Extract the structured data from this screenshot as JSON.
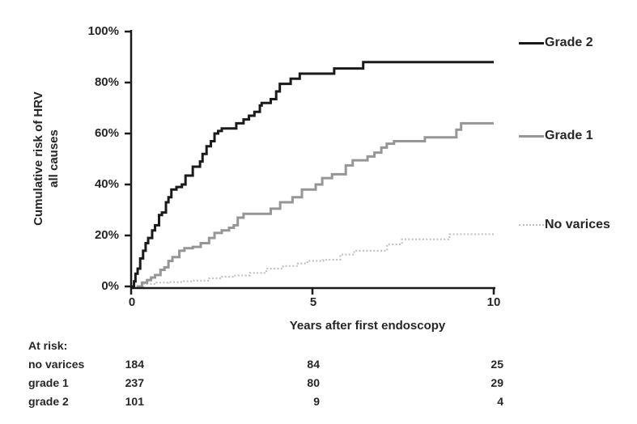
{
  "figure": {
    "background": "#ffffff",
    "text_color": "#262626"
  },
  "chart_data": {
    "type": "line",
    "subtype": "kaplan-meier-step",
    "title": "",
    "xlabel": "Years after first endoscopy",
    "ylabel": "Cumulative risk of HRV all causes",
    "ylabel_lines": [
      "Cumulative risk of HRV",
      "all causes"
    ],
    "xlim": [
      0,
      10
    ],
    "ylim": [
      0,
      100
    ],
    "grid": false,
    "legend_position": "right",
    "x_ticks": [
      {
        "value": 0,
        "label": "0"
      },
      {
        "value": 5,
        "label": "5"
      },
      {
        "value": 10,
        "label": "10"
      }
    ],
    "y_ticks": [
      {
        "value": 100,
        "label": "100%"
      },
      {
        "value": 80,
        "label": "80%"
      },
      {
        "value": 60,
        "label": "60%"
      },
      {
        "value": 40,
        "label": "40%"
      },
      {
        "value": 20,
        "label": "20%"
      },
      {
        "value": 0,
        "label": "0%"
      }
    ],
    "series": [
      {
        "name": "Grade 2",
        "color": "#1a1a1a",
        "style": "solid",
        "width": 3,
        "points": [
          [
            0,
            0
          ],
          [
            0.08,
            2
          ],
          [
            0.12,
            5
          ],
          [
            0.18,
            7
          ],
          [
            0.25,
            11
          ],
          [
            0.33,
            14
          ],
          [
            0.4,
            17
          ],
          [
            0.47,
            19
          ],
          [
            0.58,
            22
          ],
          [
            0.66,
            24
          ],
          [
            0.77,
            28
          ],
          [
            0.85,
            29
          ],
          [
            0.96,
            33
          ],
          [
            1.03,
            35
          ],
          [
            1.11,
            38
          ],
          [
            1.25,
            39
          ],
          [
            1.4,
            40
          ],
          [
            1.5,
            43.5
          ],
          [
            1.7,
            47
          ],
          [
            1.9,
            49
          ],
          [
            1.97,
            52
          ],
          [
            2.08,
            55
          ],
          [
            2.2,
            57
          ],
          [
            2.3,
            60
          ],
          [
            2.4,
            61
          ],
          [
            2.5,
            62
          ],
          [
            2.9,
            64
          ],
          [
            3.1,
            65.5
          ],
          [
            3.25,
            67
          ],
          [
            3.4,
            68.5
          ],
          [
            3.55,
            71
          ],
          [
            3.6,
            72
          ],
          [
            3.85,
            73.5
          ],
          [
            4.0,
            76.5
          ],
          [
            4.1,
            79.5
          ],
          [
            4.4,
            81.5
          ],
          [
            4.65,
            83.5
          ],
          [
            5.6,
            85.5
          ],
          [
            6.4,
            88
          ],
          [
            10,
            88
          ]
        ]
      },
      {
        "name": "Grade 1",
        "color": "#969696",
        "style": "solid",
        "width": 3,
        "points": [
          [
            0.15,
            0
          ],
          [
            0.3,
            1.5
          ],
          [
            0.44,
            2.5
          ],
          [
            0.55,
            3.5
          ],
          [
            0.66,
            4.5
          ],
          [
            0.81,
            6.5
          ],
          [
            0.92,
            7.5
          ],
          [
            1.03,
            10
          ],
          [
            1.14,
            11.5
          ],
          [
            1.33,
            14
          ],
          [
            1.47,
            15
          ],
          [
            1.7,
            15.5
          ],
          [
            1.92,
            17
          ],
          [
            2.15,
            19
          ],
          [
            2.3,
            21
          ],
          [
            2.5,
            22
          ],
          [
            2.7,
            23
          ],
          [
            2.83,
            24
          ],
          [
            2.94,
            27
          ],
          [
            3.1,
            28.5
          ],
          [
            3.85,
            30.5
          ],
          [
            4.11,
            33
          ],
          [
            4.45,
            35
          ],
          [
            4.71,
            38
          ],
          [
            5.09,
            40
          ],
          [
            5.27,
            42.5
          ],
          [
            5.54,
            44
          ],
          [
            5.92,
            47.5
          ],
          [
            6.11,
            49.5
          ],
          [
            6.52,
            51
          ],
          [
            6.71,
            52.5
          ],
          [
            6.9,
            54.5
          ],
          [
            7.05,
            56
          ],
          [
            7.25,
            57
          ],
          [
            8.1,
            58.5
          ],
          [
            8.97,
            61.5
          ],
          [
            9.1,
            64
          ],
          [
            10,
            64
          ]
        ]
      },
      {
        "name": "No varices",
        "color": "#c2c2c2",
        "style": "dotted",
        "width": 2.2,
        "points": [
          [
            0.2,
            0
          ],
          [
            0.34,
            1
          ],
          [
            0.7,
            1.5
          ],
          [
            1.02,
            1.7
          ],
          [
            1.45,
            2
          ],
          [
            1.7,
            2.3
          ],
          [
            2.15,
            3.2
          ],
          [
            2.5,
            3.8
          ],
          [
            2.83,
            4.3
          ],
          [
            3.28,
            5.3
          ],
          [
            3.73,
            7
          ],
          [
            4.19,
            8
          ],
          [
            4.6,
            9
          ],
          [
            4.86,
            10
          ],
          [
            5.3,
            10.5
          ],
          [
            5.77,
            12.5
          ],
          [
            6.15,
            14
          ],
          [
            7.06,
            16.5
          ],
          [
            7.47,
            18.5
          ],
          [
            8.78,
            20.5
          ],
          [
            10,
            20.5
          ]
        ]
      }
    ]
  },
  "at_risk_table": {
    "title": "At risk:",
    "rows": [
      {
        "label": "no varices",
        "counts": [
          "184",
          "84",
          "25"
        ]
      },
      {
        "label": "grade 1",
        "counts": [
          "237",
          "80",
          "29"
        ]
      },
      {
        "label": "grade 2",
        "counts": [
          "101",
          "9",
          "4"
        ]
      }
    ]
  }
}
